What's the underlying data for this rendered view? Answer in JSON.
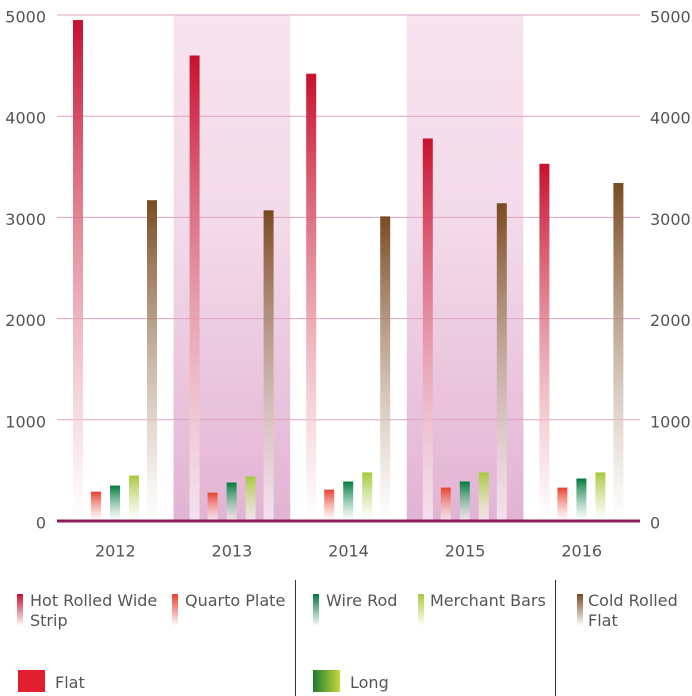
{
  "chart_data": {
    "type": "bar",
    "categories": [
      "2012",
      "2013",
      "2014",
      "2015",
      "2016"
    ],
    "series": [
      {
        "name": "Hot Rolled Wide Strip",
        "color": "#c8102e",
        "values": [
          4950,
          4600,
          4420,
          3780,
          3530
        ]
      },
      {
        "name": "Quarto Plate",
        "color": "#e8402e",
        "values": [
          290,
          280,
          310,
          330,
          330
        ]
      },
      {
        "name": "Wire Rod",
        "color": "#007a3d",
        "values": [
          350,
          380,
          390,
          390,
          420
        ]
      },
      {
        "name": "Merchant Bars",
        "color": "#a8c83c",
        "values": [
          450,
          440,
          480,
          480,
          480
        ]
      },
      {
        "name": "Cold Rolled Flat",
        "color": "#7a4a22",
        "values": [
          3170,
          3070,
          3010,
          3140,
          3340
        ]
      }
    ],
    "groups": [
      {
        "name": "Flat",
        "color": "#e01e2e"
      },
      {
        "name": "Long",
        "color": "#1e7a30"
      }
    ],
    "ylim": [
      0,
      5000
    ],
    "yticks": [
      0,
      1000,
      2000,
      3000,
      4000,
      5000
    ],
    "y2lim": [
      0,
      5000
    ],
    "y2ticks": [
      0,
      1000,
      2000,
      3000,
      4000,
      5000
    ],
    "grid": true
  }
}
